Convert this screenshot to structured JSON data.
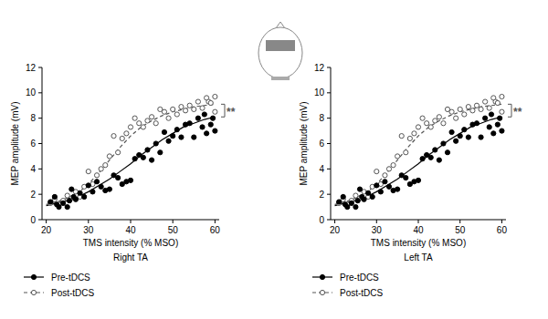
{
  "chart_data": [
    {
      "type": "scatter",
      "title": "Right TA",
      "x_label": "TMS intensity (% MSO)",
      "y_label": "MEP amplitude (mV)",
      "xlim": [
        19,
        61
      ],
      "ylim": [
        0,
        12
      ],
      "xticks": [
        20,
        30,
        40,
        50,
        60
      ],
      "yticks": [
        0,
        2,
        4,
        6,
        8,
        10,
        12
      ],
      "annotation": "**",
      "legend": "bottom-left",
      "fit_x": [
        20,
        22.5,
        25,
        27.5,
        30,
        32.5,
        35,
        37.5,
        40,
        42.5,
        45,
        47.5,
        50,
        52.5,
        55,
        57.5,
        60
      ],
      "series": [
        {
          "name": "Pre-tDCS",
          "color": "#000000",
          "marker": "filled-circle",
          "line_style": "solid",
          "x": [
            21,
            22,
            22.5,
            23,
            24,
            25,
            25.5,
            26,
            26.5,
            27,
            28,
            29,
            30,
            31,
            32,
            33,
            34,
            35,
            36,
            37,
            38,
            39,
            40,
            41,
            42,
            43,
            44,
            45,
            46,
            47,
            48,
            49,
            50,
            51,
            52,
            53,
            54,
            55,
            56,
            57,
            57.5,
            58,
            59,
            59.5,
            60
          ],
          "values": [
            1.4,
            1.8,
            1.2,
            1.0,
            1.3,
            1.0,
            1.5,
            2.4,
            1.8,
            1.6,
            2.1,
            1.8,
            2.7,
            2.2,
            3.0,
            2.6,
            2.3,
            2.4,
            3.5,
            3.3,
            2.8,
            3.0,
            3.1,
            4.8,
            5.1,
            4.9,
            5.5,
            4.7,
            6.0,
            5.3,
            6.9,
            6.2,
            6.6,
            7.1,
            6.5,
            7.5,
            7.6,
            6.5,
            8.0,
            7.3,
            8.3,
            6.8,
            7.5,
            8.0,
            7.0
          ],
          "fit_values": [
            1.1,
            1.3,
            1.5,
            1.8,
            2.2,
            2.7,
            3.2,
            3.8,
            4.4,
            5.1,
            5.7,
            6.3,
            6.8,
            7.3,
            7.6,
            7.9,
            8.1
          ]
        },
        {
          "name": "Post-tDCS",
          "color": "#555555",
          "marker": "open-circle",
          "line_style": "dashed",
          "x": [
            21,
            22,
            23,
            24,
            25,
            26,
            27,
            28,
            29,
            30,
            31,
            32,
            33,
            34,
            35,
            36,
            37,
            38,
            39,
            40,
            41,
            42,
            43,
            44,
            45,
            46,
            47,
            48,
            49,
            50,
            51,
            52,
            53,
            54,
            55,
            56,
            57,
            58,
            58.5,
            59,
            60,
            60
          ],
          "values": [
            1.3,
            1.6,
            1.2,
            1.5,
            1.9,
            1.7,
            2.2,
            1.8,
            2.6,
            3.8,
            2.8,
            3.5,
            4.0,
            4.3,
            5.0,
            6.6,
            5.3,
            6.4,
            6.8,
            7.3,
            8.0,
            7.6,
            7.3,
            7.8,
            8.1,
            7.6,
            8.7,
            8.5,
            8.0,
            8.7,
            8.3,
            8.9,
            8.6,
            9.0,
            8.7,
            9.3,
            8.8,
            9.6,
            9.3,
            9.2,
            9.7,
            8.5
          ],
          "fit_values": [
            1.2,
            1.4,
            1.7,
            2.1,
            2.8,
            3.7,
            4.7,
            5.7,
            6.6,
            7.3,
            7.8,
            8.2,
            8.5,
            8.7,
            8.9,
            9.0,
            9.1
          ]
        }
      ]
    },
    {
      "type": "scatter",
      "title": "Left TA",
      "x_label": "TMS intensity (% MSO)",
      "y_label": "MEP amplitude (mV)",
      "xlim": [
        19,
        61
      ],
      "ylim": [
        0,
        12
      ],
      "xticks": [
        20,
        30,
        40,
        50,
        60
      ],
      "yticks": [
        0,
        2,
        4,
        6,
        8,
        10,
        12
      ],
      "annotation": "**",
      "legend": "bottom-left",
      "fit_x": [
        20,
        22.5,
        25,
        27.5,
        30,
        32.5,
        35,
        37.5,
        40,
        42.5,
        45,
        47.5,
        50,
        52.5,
        55,
        57.5,
        60
      ],
      "series": [
        {
          "name": "Pre-tDCS",
          "color": "#000000",
          "marker": "filled-circle",
          "line_style": "solid",
          "x": [
            21,
            22,
            22.5,
            23,
            24,
            25,
            25.5,
            26,
            26.5,
            27,
            28,
            29,
            30,
            31,
            32,
            33,
            34,
            35,
            36,
            37,
            38,
            39,
            40,
            41,
            42,
            43,
            44,
            45,
            46,
            47,
            48,
            49,
            50,
            51,
            52,
            53,
            54,
            55,
            56,
            57,
            57.5,
            58,
            59,
            59.5,
            60
          ],
          "values": [
            1.4,
            1.8,
            1.2,
            1.0,
            1.3,
            1.0,
            1.5,
            2.4,
            1.8,
            1.6,
            2.1,
            1.8,
            2.7,
            2.2,
            3.0,
            2.6,
            2.3,
            2.4,
            3.5,
            3.3,
            2.8,
            3.0,
            3.1,
            4.8,
            5.1,
            4.9,
            5.5,
            4.7,
            6.0,
            5.3,
            6.9,
            6.2,
            6.6,
            7.1,
            6.5,
            7.5,
            7.6,
            6.5,
            8.0,
            7.3,
            8.3,
            6.8,
            7.5,
            8.0,
            7.0
          ],
          "fit_values": [
            1.1,
            1.3,
            1.5,
            1.8,
            2.2,
            2.7,
            3.2,
            3.8,
            4.4,
            5.1,
            5.7,
            6.3,
            6.8,
            7.3,
            7.6,
            7.9,
            8.1
          ]
        },
        {
          "name": "Post-tDCS",
          "color": "#555555",
          "marker": "open-circle",
          "line_style": "dashed",
          "x": [
            21,
            22,
            23,
            24,
            25,
            26,
            27,
            28,
            29,
            30,
            31,
            32,
            33,
            34,
            35,
            36,
            37,
            38,
            39,
            40,
            41,
            42,
            43,
            44,
            45,
            46,
            47,
            48,
            49,
            50,
            51,
            52,
            53,
            54,
            55,
            56,
            57,
            58,
            58.5,
            59,
            60,
            60
          ],
          "values": [
            1.3,
            1.6,
            1.2,
            1.5,
            1.9,
            1.7,
            2.2,
            1.8,
            2.6,
            3.8,
            2.8,
            3.5,
            4.0,
            4.3,
            5.0,
            6.6,
            5.3,
            6.4,
            6.8,
            7.3,
            8.0,
            7.6,
            7.3,
            7.8,
            8.1,
            7.6,
            8.7,
            8.5,
            8.0,
            8.7,
            8.3,
            8.9,
            8.6,
            9.0,
            8.7,
            9.3,
            8.8,
            9.6,
            9.3,
            9.2,
            9.7,
            8.5
          ],
          "fit_values": [
            1.2,
            1.4,
            1.7,
            2.1,
            2.8,
            3.7,
            4.7,
            5.7,
            6.6,
            7.3,
            7.8,
            8.2,
            8.5,
            8.7,
            8.9,
            9.0,
            9.1
          ]
        }
      ]
    }
  ]
}
